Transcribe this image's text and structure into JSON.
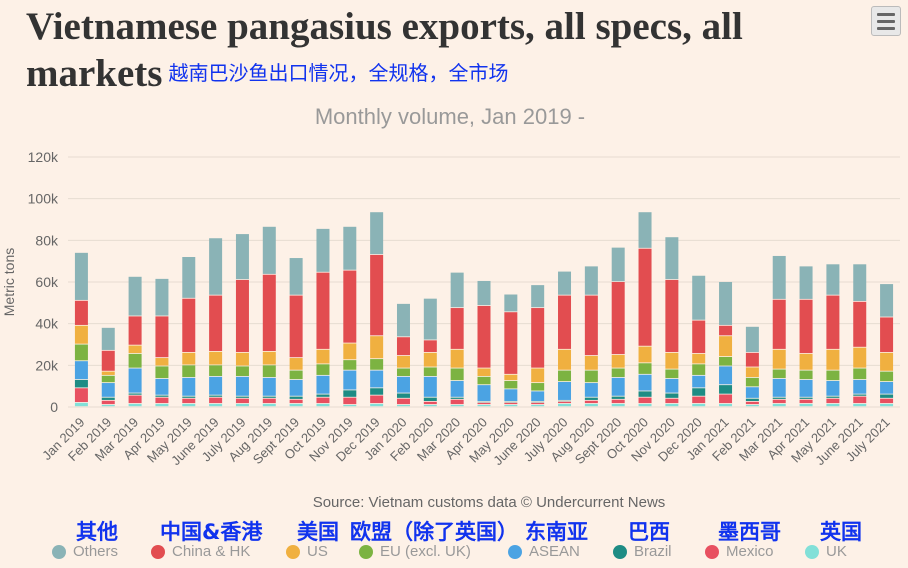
{
  "header": {
    "title": "Vietnamese pangasius exports, all specs, all markets",
    "title_cn": "越南巴沙鱼出口情况，全规格，全市场",
    "subtitle": "Monthly volume, Jan 2019 -",
    "menu_icon": "hamburger-icon"
  },
  "source": "Source: Vietnam customs data © Undercurrent News",
  "legend_cn": [
    "其他",
    "中国&香港",
    "美国",
    "欧盟（除了英国）",
    "东南亚",
    "巴西",
    "墨西哥",
    "英国"
  ],
  "chart_data": {
    "type": "bar",
    "stacked": true,
    "title": "Vietnamese pangasius exports, all specs, all markets",
    "subtitle": "Monthly volume, Jan 2019 -",
    "ylabel": "Metric tons",
    "ylim": [
      0,
      120000
    ],
    "yticks": [
      "0",
      "20k",
      "40k",
      "60k",
      "80k",
      "100k",
      "120k"
    ],
    "grid": true,
    "legend_position": "bottom",
    "categories": [
      "Jan 2019",
      "Feb 2019",
      "Mar 2019",
      "Apr 2019",
      "May 2019",
      "June 2019",
      "July 2019",
      "Aug 2019",
      "Sept 2019",
      "Oct 2019",
      "Nov 2019",
      "Dec 2019",
      "Jan 2020",
      "Feb 2020",
      "Mar 2020",
      "Apr 2020",
      "May 2020",
      "June 2020",
      "July 2020",
      "Aug 2020",
      "Sept 2020",
      "Oct 2020",
      "Nov 2020",
      "Dec 2020",
      "Jan 2021",
      "Feb 2021",
      "Mar 2021",
      "Apr 2021",
      "May 2021",
      "June 2021",
      "July 2021"
    ],
    "series": [
      {
        "name": "UK",
        "color": "#82e0d8",
        "values": [
          2000,
          1000,
          1500,
          1500,
          1500,
          1500,
          1500,
          1500,
          1500,
          1500,
          1000,
          1500,
          1000,
          1000,
          1000,
          1000,
          1000,
          1000,
          1500,
          1500,
          1500,
          1500,
          1500,
          1500,
          1500,
          1000,
          1500,
          1500,
          1500,
          1500,
          1500
        ]
      },
      {
        "name": "Mexico",
        "color": "#e85060",
        "values": [
          7000,
          2000,
          4000,
          3000,
          2500,
          3000,
          2500,
          2500,
          2000,
          3000,
          3500,
          4000,
          3000,
          1500,
          2500,
          1000,
          1000,
          1000,
          1000,
          1500,
          2000,
          3000,
          2500,
          3500,
          4500,
          1500,
          2000,
          2000,
          2500,
          3500,
          2500
        ]
      },
      {
        "name": "Brazil",
        "color": "#1e8c84",
        "values": [
          4000,
          1500,
          1000,
          1000,
          1000,
          1000,
          1000,
          1000,
          1500,
          1500,
          3500,
          3500,
          2500,
          2000,
          1000,
          500,
          500,
          500,
          500,
          1500,
          1500,
          3000,
          2500,
          4000,
          4500,
          1500,
          1000,
          1000,
          1000,
          1000,
          2000
        ]
      },
      {
        "name": "ASEAN",
        "color": "#4ba3e3",
        "values": [
          9000,
          7000,
          12000,
          8000,
          9000,
          9000,
          9500,
          9000,
          8000,
          9000,
          9500,
          8500,
          8000,
          10000,
          8000,
          8000,
          6000,
          5000,
          9000,
          7000,
          9000,
          8000,
          7000,
          6000,
          9000,
          5500,
          9000,
          8500,
          7500,
          7000,
          6000
        ]
      },
      {
        "name": "EU (excl. UK)",
        "color": "#7cb342",
        "values": [
          8000,
          3500,
          7000,
          6000,
          6000,
          5500,
          5000,
          6000,
          4500,
          5500,
          5000,
          5500,
          4000,
          4500,
          6000,
          4000,
          4000,
          4000,
          5500,
          6000,
          4500,
          5500,
          4500,
          5500,
          4500,
          4500,
          4500,
          4500,
          5000,
          5500,
          5000
        ]
      },
      {
        "name": "US",
        "color": "#f0b040",
        "values": [
          9000,
          2000,
          4000,
          4000,
          6000,
          6500,
          6500,
          6500,
          6000,
          7000,
          8000,
          11000,
          6000,
          7000,
          9000,
          4000,
          3000,
          7000,
          10000,
          7000,
          6500,
          8000,
          8000,
          5000,
          10000,
          5000,
          9500,
          8000,
          10000,
          10000,
          9000
        ]
      },
      {
        "name": "China & HK",
        "color": "#e24d50",
        "values": [
          12000,
          10000,
          14000,
          20000,
          26000,
          27000,
          35000,
          37000,
          30000,
          37000,
          35000,
          39000,
          9000,
          6000,
          20000,
          30000,
          30000,
          29000,
          26000,
          29000,
          35000,
          47000,
          35000,
          16000,
          5000,
          7000,
          24000,
          26000,
          26000,
          22000,
          17000
        ]
      },
      {
        "name": "Others",
        "color": "#8ab3b6",
        "values": [
          23000,
          11000,
          19000,
          18000,
          20000,
          27500,
          22000,
          23000,
          18000,
          21000,
          21000,
          20500,
          16000,
          20000,
          17000,
          12000,
          8500,
          11000,
          11500,
          14000,
          16500,
          17500,
          20500,
          21500,
          21000,
          12500,
          21000,
          16000,
          15000,
          18000,
          16000
        ]
      }
    ]
  }
}
